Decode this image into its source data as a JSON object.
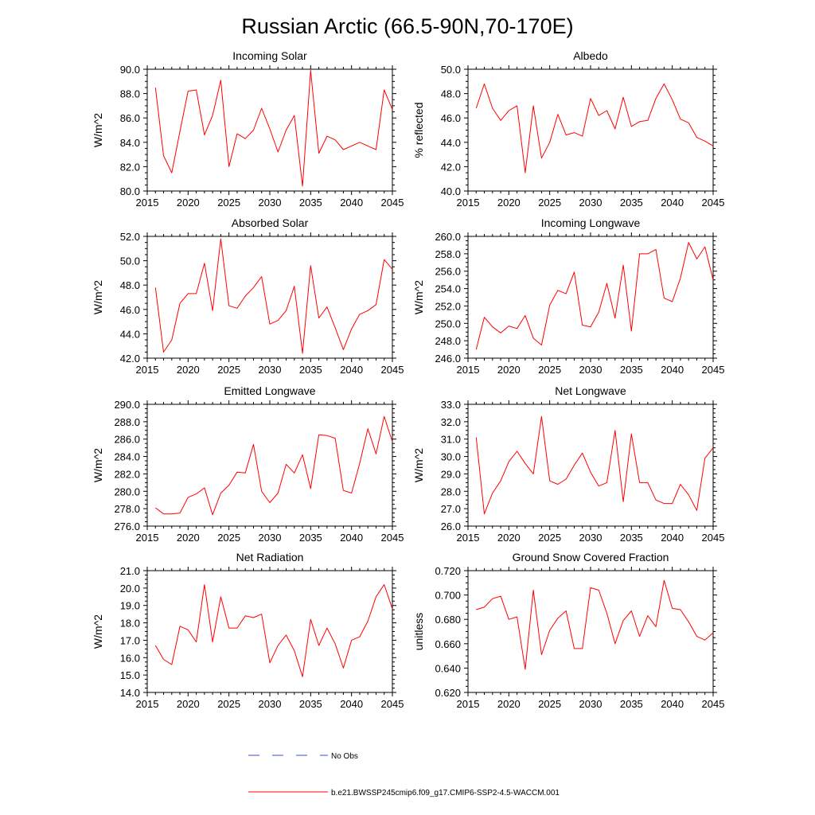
{
  "figure": {
    "title": "Russian Arctic (66.5-90N,70-170E)",
    "legend": {
      "obs_label": "No Obs",
      "obs_color": "#3a4fcf",
      "model_label": "b.e21.BWSSP245cmip6.f09_g17.CMIP6-SSP2-4.5-WACCM.001",
      "model_color": "#ff0000"
    }
  },
  "chart_data": [
    {
      "type": "line",
      "title": "Incoming Solar",
      "ylabel": "W/m^2",
      "xlim": [
        2015,
        2045
      ],
      "ylim": [
        80.0,
        90.0
      ],
      "xticks": [
        2015,
        2020,
        2025,
        2030,
        2035,
        2040,
        2045
      ],
      "yticks": [
        80.0,
        82.0,
        84.0,
        86.0,
        88.0,
        90.0
      ],
      "ydecimals": 1,
      "x": [
        2016,
        2017,
        2018,
        2019,
        2020,
        2021,
        2022,
        2023,
        2024,
        2025,
        2026,
        2027,
        2028,
        2029,
        2030,
        2031,
        2032,
        2033,
        2034,
        2035,
        2036,
        2037,
        2038,
        2039,
        2040,
        2041,
        2042,
        2043,
        2044,
        2045
      ],
      "series": [
        {
          "color": "#ff0000",
          "values": [
            88.5,
            82.9,
            81.5,
            84.9,
            88.2,
            88.3,
            84.6,
            86.2,
            89.1,
            82.0,
            84.7,
            84.3,
            85.0,
            86.8,
            85.1,
            83.2,
            85.0,
            86.2,
            80.4,
            89.9,
            83.1,
            84.5,
            84.2,
            83.4,
            83.7,
            84.0,
            83.7,
            83.4,
            88.3,
            86.7
          ]
        }
      ]
    },
    {
      "type": "line",
      "title": "Albedo",
      "ylabel": "% reflected",
      "xlim": [
        2015,
        2045
      ],
      "ylim": [
        40.0,
        50.0
      ],
      "xticks": [
        2015,
        2020,
        2025,
        2030,
        2035,
        2040,
        2045
      ],
      "yticks": [
        40.0,
        42.0,
        44.0,
        46.0,
        48.0,
        50.0
      ],
      "ydecimals": 1,
      "x": [
        2016,
        2017,
        2018,
        2019,
        2020,
        2021,
        2022,
        2023,
        2024,
        2025,
        2026,
        2027,
        2028,
        2029,
        2030,
        2031,
        2032,
        2033,
        2034,
        2035,
        2036,
        2037,
        2038,
        2039,
        2040,
        2041,
        2042,
        2043,
        2044,
        2045
      ],
      "series": [
        {
          "color": "#ff0000",
          "values": [
            46.8,
            48.8,
            46.8,
            45.8,
            46.6,
            47.0,
            41.5,
            47.0,
            42.7,
            44.0,
            46.3,
            44.6,
            44.8,
            44.5,
            47.6,
            46.2,
            46.6,
            45.1,
            47.7,
            45.3,
            45.7,
            45.8,
            47.6,
            48.8,
            47.5,
            45.9,
            45.6,
            44.4,
            44.1,
            43.7
          ]
        }
      ]
    },
    {
      "type": "line",
      "title": "Absorbed Solar",
      "ylabel": "W/m^2",
      "xlim": [
        2015,
        2045
      ],
      "ylim": [
        42.0,
        52.0
      ],
      "xticks": [
        2015,
        2020,
        2025,
        2030,
        2035,
        2040,
        2045
      ],
      "yticks": [
        42.0,
        44.0,
        46.0,
        48.0,
        50.0,
        52.0
      ],
      "ydecimals": 1,
      "x": [
        2016,
        2017,
        2018,
        2019,
        2020,
        2021,
        2022,
        2023,
        2024,
        2025,
        2026,
        2027,
        2028,
        2029,
        2030,
        2031,
        2032,
        2033,
        2034,
        2035,
        2036,
        2037,
        2038,
        2039,
        2040,
        2041,
        2042,
        2043,
        2044,
        2045
      ],
      "series": [
        {
          "color": "#ff0000",
          "values": [
            47.8,
            42.5,
            43.5,
            46.5,
            47.3,
            47.3,
            49.8,
            45.9,
            51.8,
            46.3,
            46.1,
            47.1,
            47.8,
            48.7,
            44.8,
            45.1,
            45.9,
            47.9,
            42.4,
            49.6,
            45.3,
            46.2,
            44.5,
            42.7,
            44.4,
            45.6,
            45.9,
            46.4,
            50.1,
            49.3
          ]
        }
      ]
    },
    {
      "type": "line",
      "title": "Incoming Longwave",
      "ylabel": "W/m^2",
      "xlim": [
        2015,
        2045
      ],
      "ylim": [
        246.0,
        260.0
      ],
      "xticks": [
        2015,
        2020,
        2025,
        2030,
        2035,
        2040,
        2045
      ],
      "yticks": [
        246.0,
        248.0,
        250.0,
        252.0,
        254.0,
        256.0,
        258.0,
        260.0
      ],
      "ydecimals": 1,
      "x": [
        2016,
        2017,
        2018,
        2019,
        2020,
        2021,
        2022,
        2023,
        2024,
        2025,
        2026,
        2027,
        2028,
        2029,
        2030,
        2031,
        2032,
        2033,
        2034,
        2035,
        2036,
        2037,
        2038,
        2039,
        2040,
        2041,
        2042,
        2043,
        2044,
        2045
      ],
      "series": [
        {
          "color": "#ff0000",
          "values": [
            247.0,
            250.7,
            249.6,
            248.9,
            249.7,
            249.4,
            250.9,
            248.3,
            247.5,
            252.1,
            253.8,
            253.4,
            255.9,
            249.8,
            249.6,
            251.3,
            254.6,
            250.6,
            256.7,
            249.1,
            258.0,
            258.0,
            258.5,
            252.9,
            252.5,
            255.2,
            259.3,
            257.4,
            258.8,
            255.0
          ]
        }
      ]
    },
    {
      "type": "line",
      "title": "Emitted Longwave",
      "ylabel": "W/m^2",
      "xlim": [
        2015,
        2045
      ],
      "ylim": [
        276.0,
        290.0
      ],
      "xticks": [
        2015,
        2020,
        2025,
        2030,
        2035,
        2040,
        2045
      ],
      "yticks": [
        276.0,
        278.0,
        280.0,
        282.0,
        284.0,
        286.0,
        288.0,
        290.0
      ],
      "ydecimals": 1,
      "x": [
        2016,
        2017,
        2018,
        2019,
        2020,
        2021,
        2022,
        2023,
        2024,
        2025,
        2026,
        2027,
        2028,
        2029,
        2030,
        2031,
        2032,
        2033,
        2034,
        2035,
        2036,
        2037,
        2038,
        2039,
        2040,
        2041,
        2042,
        2043,
        2044,
        2045
      ],
      "series": [
        {
          "color": "#ff0000",
          "values": [
            278.1,
            277.4,
            277.4,
            277.5,
            279.3,
            279.7,
            280.4,
            277.3,
            279.8,
            280.7,
            282.2,
            282.1,
            285.4,
            280.0,
            278.7,
            279.8,
            283.1,
            282.1,
            284.2,
            280.3,
            286.5,
            286.4,
            286.1,
            280.1,
            279.8,
            283.2,
            287.2,
            284.3,
            288.6,
            285.7
          ]
        }
      ]
    },
    {
      "type": "line",
      "title": "Net Longwave",
      "ylabel": "W/m^2",
      "xlim": [
        2015,
        2045
      ],
      "ylim": [
        26.0,
        33.0
      ],
      "xticks": [
        2015,
        2020,
        2025,
        2030,
        2035,
        2040,
        2045
      ],
      "yticks": [
        26.0,
        27.0,
        28.0,
        29.0,
        30.0,
        31.0,
        32.0,
        33.0
      ],
      "ydecimals": 1,
      "x": [
        2016,
        2017,
        2018,
        2019,
        2020,
        2021,
        2022,
        2023,
        2024,
        2025,
        2026,
        2027,
        2028,
        2029,
        2030,
        2031,
        2032,
        2033,
        2034,
        2035,
        2036,
        2037,
        2038,
        2039,
        2040,
        2041,
        2042,
        2043,
        2044,
        2045
      ],
      "series": [
        {
          "color": "#ff0000",
          "values": [
            31.1,
            26.7,
            27.9,
            28.6,
            29.7,
            30.3,
            29.6,
            29.0,
            32.3,
            28.6,
            28.4,
            28.7,
            29.5,
            30.2,
            29.1,
            28.3,
            28.5,
            31.5,
            27.4,
            31.3,
            28.5,
            28.5,
            27.5,
            27.3,
            27.3,
            28.4,
            27.8,
            26.9,
            29.9,
            30.5
          ]
        }
      ]
    },
    {
      "type": "line",
      "title": "Net Radiation",
      "ylabel": "W/m^2",
      "xlim": [
        2015,
        2045
      ],
      "ylim": [
        14.0,
        21.0
      ],
      "xticks": [
        2015,
        2020,
        2025,
        2030,
        2035,
        2040,
        2045
      ],
      "yticks": [
        14.0,
        15.0,
        16.0,
        17.0,
        18.0,
        19.0,
        20.0,
        21.0
      ],
      "ydecimals": 1,
      "x": [
        2016,
        2017,
        2018,
        2019,
        2020,
        2021,
        2022,
        2023,
        2024,
        2025,
        2026,
        2027,
        2028,
        2029,
        2030,
        2031,
        2032,
        2033,
        2034,
        2035,
        2036,
        2037,
        2038,
        2039,
        2040,
        2041,
        2042,
        2043,
        2044,
        2045
      ],
      "series": [
        {
          "color": "#ff0000",
          "values": [
            16.7,
            15.9,
            15.6,
            17.8,
            17.6,
            16.9,
            20.2,
            16.9,
            19.5,
            17.7,
            17.7,
            18.4,
            18.3,
            18.5,
            15.7,
            16.7,
            17.3,
            16.4,
            14.9,
            18.2,
            16.7,
            17.7,
            16.8,
            15.4,
            17.0,
            17.2,
            18.1,
            19.5,
            20.2,
            18.8
          ]
        }
      ]
    },
    {
      "type": "line",
      "title": "Ground Snow Covered Fraction",
      "ylabel": "unitless",
      "xlim": [
        2015,
        2045
      ],
      "ylim": [
        0.62,
        0.72
      ],
      "xticks": [
        2015,
        2020,
        2025,
        2030,
        2035,
        2040,
        2045
      ],
      "yticks": [
        0.62,
        0.64,
        0.66,
        0.68,
        0.7,
        0.72
      ],
      "ydecimals": 3,
      "x": [
        2016,
        2017,
        2018,
        2019,
        2020,
        2021,
        2022,
        2023,
        2024,
        2025,
        2026,
        2027,
        2028,
        2029,
        2030,
        2031,
        2032,
        2033,
        2034,
        2035,
        2036,
        2037,
        2038,
        2039,
        2040,
        2041,
        2042,
        2043,
        2044,
        2045
      ],
      "series": [
        {
          "color": "#ff0000",
          "values": [
            0.688,
            0.69,
            0.697,
            0.699,
            0.68,
            0.682,
            0.639,
            0.704,
            0.651,
            0.671,
            0.681,
            0.687,
            0.656,
            0.656,
            0.706,
            0.704,
            0.685,
            0.66,
            0.679,
            0.687,
            0.666,
            0.683,
            0.674,
            0.712,
            0.689,
            0.688,
            0.678,
            0.666,
            0.663,
            0.669
          ]
        }
      ]
    }
  ]
}
